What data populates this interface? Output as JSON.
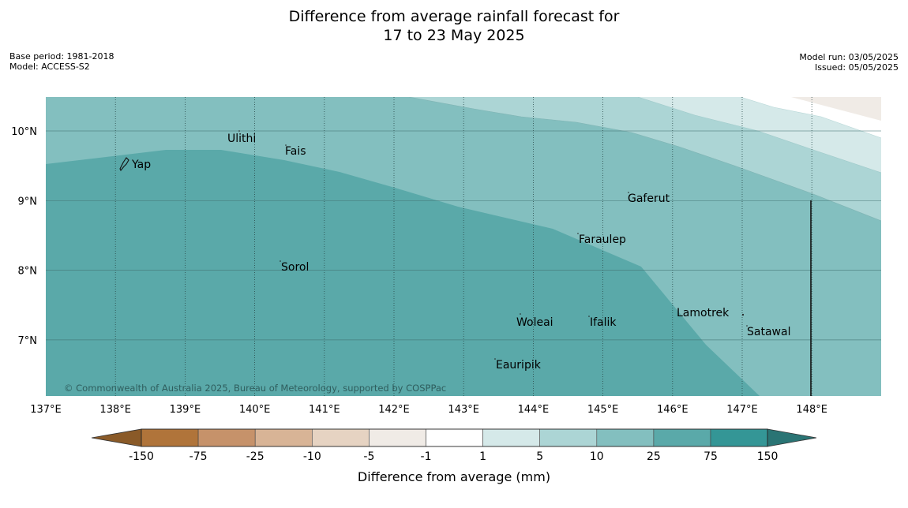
{
  "header": {
    "title_line1": "Difference from average rainfall forecast for",
    "title_line2": "17 to 23 May 2025",
    "base_period": "Base period: 1981-2018",
    "model": "Model: ACCESS-S2",
    "model_run": "Model run: 03/05/2025",
    "issued": "Issued: 05/05/2025"
  },
  "map": {
    "lon_labels": [
      "137°E",
      "138°E",
      "139°E",
      "140°E",
      "141°E",
      "142°E",
      "143°E",
      "144°E",
      "145°E",
      "146°E",
      "147°E",
      "148°E"
    ],
    "lat_labels": [
      "10°N",
      "9°N",
      "8°N",
      "7°N"
    ],
    "places": [
      "Yap",
      "Ulithi",
      "Fais",
      "Sorol",
      "Gaferut",
      "Faraulep",
      "Woleai",
      "Ifalik",
      "Lamotrek",
      "Satawal",
      "Eauripik"
    ],
    "copyright": "© Commonwealth of Australia 2025, Bureau of Meteorology, supported by COSPPac"
  },
  "legend": {
    "tick_labels": [
      "-150",
      "-75",
      "-25",
      "-10",
      "-5",
      "-1",
      "1",
      "5",
      "10",
      "25",
      "75",
      "150"
    ],
    "title": "Difference from average (mm)",
    "colors": [
      "#8a5a28",
      "#b0743a",
      "#c6926a",
      "#d8b496",
      "#e6d3c2",
      "#f0ebe6",
      "#ffffff",
      "#d5e9e9",
      "#acd5d5",
      "#83bfbf",
      "#5aa9a9",
      "#349696",
      "#2a7474"
    ]
  }
}
